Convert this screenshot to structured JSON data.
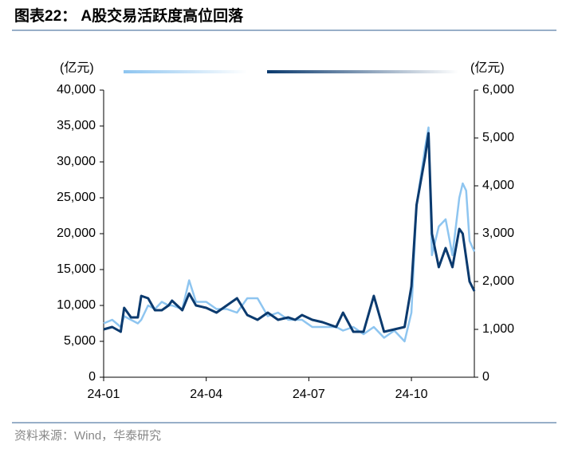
{
  "chart_data": {
    "type": "line",
    "title": "图表22：  A股交易活跃度高位回落",
    "y_label": "(亿元)",
    "y2_label": "(亿元)",
    "source": "资料来源：Wind，华泰研究",
    "x": [
      0,
      0.25,
      0.5,
      0.6,
      0.8,
      1.0,
      1.1,
      1.3,
      1.5,
      1.7,
      1.9,
      2.0,
      2.3,
      2.5,
      2.7,
      3.0,
      3.3,
      3.6,
      3.9,
      4.2,
      4.5,
      4.8,
      5.1,
      5.4,
      5.6,
      5.8,
      6.1,
      6.4,
      6.8,
      7.0,
      7.3,
      7.6,
      7.9,
      8.2,
      8.5,
      8.8,
      9.0,
      9.15,
      9.4,
      9.5,
      9.6,
      9.8,
      10.0,
      10.2,
      10.4,
      10.5,
      10.6,
      10.7,
      10.84
    ],
    "xlim": [
      0,
      10.84
    ],
    "xticks": [
      {
        "value": 0,
        "label": "24-01"
      },
      {
        "value": 3,
        "label": "24-04"
      },
      {
        "value": 6,
        "label": "24-07"
      },
      {
        "value": 9,
        "label": "24-10"
      }
    ],
    "ylim": [
      0,
      40000
    ],
    "yticks": [
      0,
      {
        "value": 5000,
        "label": "5,000"
      },
      {
        "value": 10000,
        "label": "10,000"
      },
      {
        "value": 15000,
        "label": "15,000"
      },
      {
        "value": 20000,
        "label": "20,000"
      },
      {
        "value": 25000,
        "label": "25,000"
      },
      {
        "value": 30000,
        "label": "30,000"
      },
      {
        "value": 35000,
        "label": "35,000"
      },
      {
        "value": 40000,
        "label": "40,000"
      }
    ],
    "y2lim": [
      0,
      6000
    ],
    "y2ticks": [
      0,
      {
        "value": 1000,
        "label": "1,000"
      },
      {
        "value": 2000,
        "label": "2,000"
      },
      {
        "value": 3000,
        "label": "3,000"
      },
      {
        "value": 4000,
        "label": "4,000"
      },
      {
        "value": 5000,
        "label": "5,000"
      },
      {
        "value": 6000,
        "label": "6,000"
      }
    ],
    "series": [
      {
        "color": "#8ec5f0",
        "values": [
          7500,
          8000,
          7000,
          8500,
          8000,
          7500,
          8000,
          10000,
          9500,
          10500,
          10000,
          10000,
          9500,
          13500,
          10500,
          10500,
          9500,
          9500,
          9000,
          11000,
          11000,
          8500,
          9000,
          8000,
          8000,
          8000,
          7000,
          7000,
          7000,
          6500,
          7000,
          6000,
          7000,
          5500,
          6500,
          5000,
          9000,
          24000,
          32000,
          34800,
          17000,
          21000,
          22000,
          17000,
          25000,
          27000,
          26000,
          19000,
          17500
        ]
      },
      {
        "color": "#0b3a6e",
        "axis": "y2",
        "values": [
          1000,
          1050,
          950,
          1450,
          1250,
          1250,
          1700,
          1650,
          1400,
          1400,
          1500,
          1600,
          1400,
          1750,
          1500,
          1450,
          1350,
          1500,
          1650,
          1300,
          1200,
          1350,
          1200,
          1250,
          1200,
          1300,
          1200,
          1150,
          1050,
          1350,
          950,
          950,
          1700,
          950,
          1000,
          1050,
          1900,
          3600,
          4600,
          5100,
          3000,
          2300,
          2700,
          2300,
          3100,
          3000,
          2500,
          2000,
          1800
        ]
      }
    ]
  }
}
